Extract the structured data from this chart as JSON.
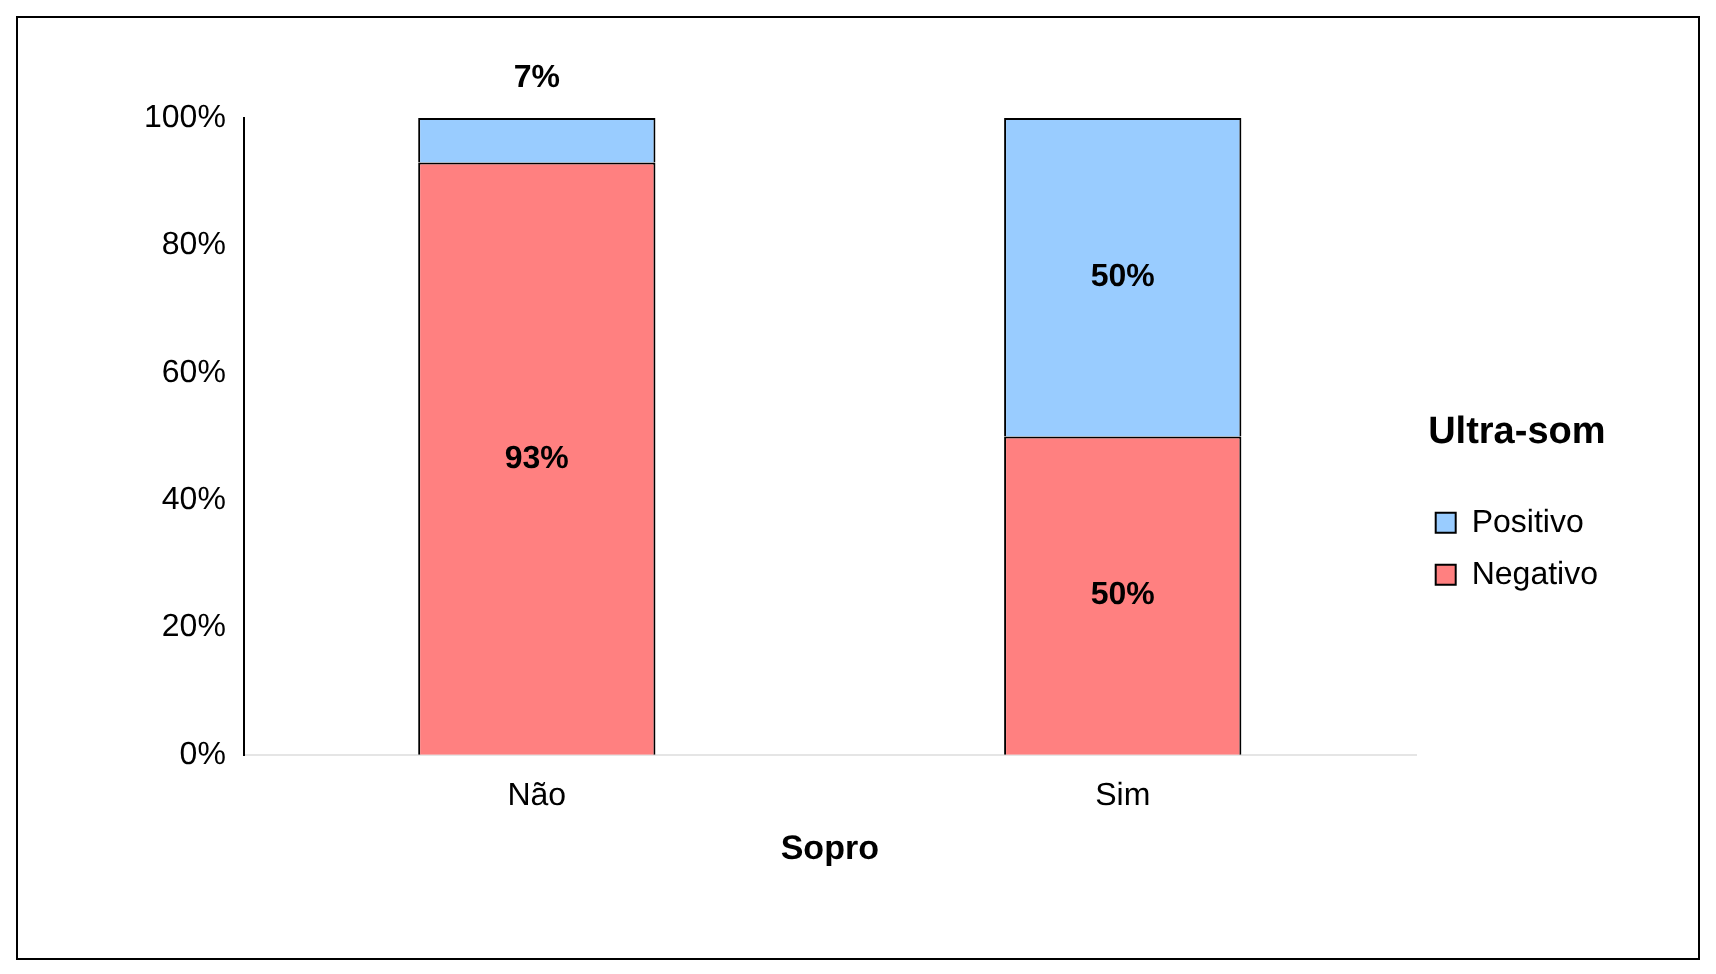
{
  "chart_data": {
    "type": "bar",
    "stacked": true,
    "xlabel": "Sopro",
    "legend_title": "Ultra-som",
    "legend": "right",
    "grid": false,
    "categories": [
      "Não",
      "Sim"
    ],
    "series": [
      {
        "name": "Negativo",
        "color": "#ff8080",
        "values": [
          93,
          50
        ],
        "value_labels": [
          "93%",
          "50%"
        ]
      },
      {
        "name": "Positivo",
        "color": "#99ccff",
        "values": [
          7,
          50
        ],
        "value_labels": [
          "7%",
          "50%"
        ]
      }
    ],
    "ylim": [
      0,
      100
    ],
    "yticks": [
      {
        "value": 0,
        "label": "0%"
      },
      {
        "value": 20,
        "label": "20%"
      },
      {
        "value": 40,
        "label": "40%"
      },
      {
        "value": 60,
        "label": "60%"
      },
      {
        "value": 80,
        "label": "80%"
      },
      {
        "value": 100,
        "label": "100%"
      }
    ]
  }
}
